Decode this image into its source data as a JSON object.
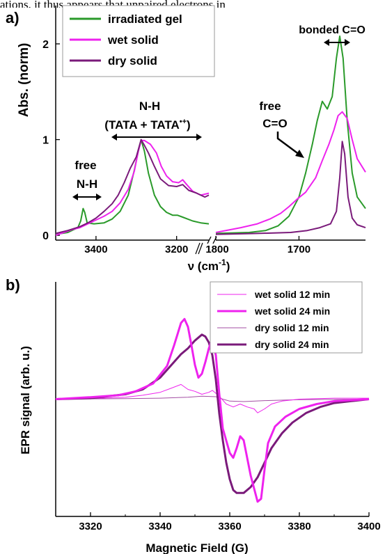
{
  "top_text": "ations, it thus appears that unpaired electrons in",
  "chart_data": [
    {
      "type": "line",
      "panel_label": "a)",
      "ylabel": "Abs. (norm)",
      "yticks": [
        "0",
        "1",
        "2"
      ],
      "ylim": [
        -0.05,
        2.4
      ],
      "x_segments": [
        {
          "range": [
            3500,
            3120
          ],
          "ticks": [
            "3400",
            "3200"
          ],
          "tick_values": [
            3400,
            3200
          ]
        },
        {
          "range": [
            1800,
            1620
          ],
          "ticks": [
            "1800",
            "1700"
          ],
          "tick_values": [
            1800,
            1700
          ]
        }
      ],
      "xlabel_main": "ν (cm",
      "xlabel_sup": "-1",
      "xlabel_end": ")",
      "legend": [
        "irradiated gel",
        "wet solid",
        "dry solid"
      ],
      "series": [
        {
          "name": "irradiated gel",
          "color": "#2a9a2a",
          "seg1": [
            [
              3500,
              0.01
            ],
            [
              3470,
              0.03
            ],
            [
              3445,
              0.08
            ],
            [
              3438,
              0.15
            ],
            [
              3432,
              0.28
            ],
            [
              3428,
              0.24
            ],
            [
              3422,
              0.13
            ],
            [
              3405,
              0.12
            ],
            [
              3380,
              0.13
            ],
            [
              3360,
              0.17
            ],
            [
              3340,
              0.25
            ],
            [
              3320,
              0.42
            ],
            [
              3305,
              0.68
            ],
            [
              3295,
              0.88
            ],
            [
              3288,
              1.0
            ],
            [
              3280,
              0.88
            ],
            [
              3270,
              0.65
            ],
            [
              3255,
              0.42
            ],
            [
              3240,
              0.3
            ],
            [
              3225,
              0.24
            ],
            [
              3210,
              0.21
            ],
            [
              3198,
              0.21
            ],
            [
              3185,
              0.19
            ],
            [
              3160,
              0.15
            ],
            [
              3140,
              0.13
            ],
            [
              3120,
              0.12
            ]
          ],
          "seg2": [
            [
              1800,
              0.02
            ],
            [
              1760,
              0.03
            ],
            [
              1740,
              0.05
            ],
            [
              1725,
              0.1
            ],
            [
              1712,
              0.2
            ],
            [
              1700,
              0.4
            ],
            [
              1692,
              0.65
            ],
            [
              1684,
              0.95
            ],
            [
              1678,
              1.2
            ],
            [
              1672,
              1.4
            ],
            [
              1666,
              1.32
            ],
            [
              1660,
              1.45
            ],
            [
              1655,
              1.85
            ],
            [
              1651,
              2.08
            ],
            [
              1647,
              1.85
            ],
            [
              1642,
              1.2
            ],
            [
              1636,
              0.65
            ],
            [
              1630,
              0.4
            ],
            [
              1620,
              0.28
            ]
          ]
        },
        {
          "name": "wet solid",
          "color": "#ee22ee",
          "seg1": [
            [
              3500,
              0.0
            ],
            [
              3480,
              0.03
            ],
            [
              3460,
              0.06
            ],
            [
              3440,
              0.08
            ],
            [
              3420,
              0.12
            ],
            [
              3400,
              0.16
            ],
            [
              3380,
              0.2
            ],
            [
              3360,
              0.25
            ],
            [
              3340,
              0.34
            ],
            [
              3320,
              0.48
            ],
            [
              3305,
              0.67
            ],
            [
              3295,
              0.88
            ],
            [
              3288,
              0.99
            ],
            [
              3280,
              0.99
            ],
            [
              3265,
              0.95
            ],
            [
              3250,
              0.86
            ],
            [
              3238,
              0.72
            ],
            [
              3225,
              0.62
            ],
            [
              3210,
              0.56
            ],
            [
              3195,
              0.55
            ],
            [
              3185,
              0.58
            ],
            [
              3175,
              0.53
            ],
            [
              3160,
              0.46
            ],
            [
              3140,
              0.42
            ],
            [
              3120,
              0.44
            ]
          ],
          "seg2": [
            [
              1800,
              0.03
            ],
            [
              1770,
              0.08
            ],
            [
              1750,
              0.12
            ],
            [
              1735,
              0.17
            ],
            [
              1722,
              0.23
            ],
            [
              1712,
              0.3
            ],
            [
              1702,
              0.38
            ],
            [
              1692,
              0.45
            ],
            [
              1680,
              0.6
            ],
            [
              1672,
              0.78
            ],
            [
              1664,
              0.95
            ],
            [
              1658,
              1.1
            ],
            [
              1653,
              1.25
            ],
            [
              1648,
              1.29
            ],
            [
              1642,
              1.22
            ],
            [
              1636,
              1.0
            ],
            [
              1630,
              0.8
            ],
            [
              1620,
              0.66
            ]
          ]
        },
        {
          "name": "dry solid",
          "color": "#7a1a7a",
          "seg1": [
            [
              3500,
              0.02
            ],
            [
              3470,
              0.05
            ],
            [
              3440,
              0.09
            ],
            [
              3420,
              0.13
            ],
            [
              3400,
              0.18
            ],
            [
              3380,
              0.25
            ],
            [
              3360,
              0.33
            ],
            [
              3345,
              0.42
            ],
            [
              3330,
              0.55
            ],
            [
              3315,
              0.7
            ],
            [
              3300,
              0.82
            ],
            [
              3288,
              1.0
            ],
            [
              3280,
              0.94
            ],
            [
              3270,
              0.86
            ],
            [
              3255,
              0.72
            ],
            [
              3240,
              0.59
            ],
            [
              3220,
              0.52
            ],
            [
              3200,
              0.51
            ],
            [
              3185,
              0.53
            ],
            [
              3170,
              0.47
            ],
            [
              3150,
              0.44
            ],
            [
              3130,
              0.4
            ],
            [
              3120,
              0.42
            ]
          ],
          "seg2": [
            [
              1800,
              0.01
            ],
            [
              1750,
              0.02
            ],
            [
              1710,
              0.03
            ],
            [
              1690,
              0.05
            ],
            [
              1675,
              0.08
            ],
            [
              1662,
              0.12
            ],
            [
              1655,
              0.25
            ],
            [
              1651,
              0.6
            ],
            [
              1648,
              0.98
            ],
            [
              1645,
              0.85
            ],
            [
              1641,
              0.4
            ],
            [
              1636,
              0.18
            ],
            [
              1630,
              0.11
            ],
            [
              1620,
              0.08
            ]
          ]
        }
      ],
      "annotations": [
        {
          "id": "free-nh",
          "lines": [
            "free",
            "N-H"
          ]
        },
        {
          "id": "nh-band",
          "lines": [
            "N-H",
            "(TATA + TATA",
            "•+",
            ")"
          ]
        },
        {
          "id": "free-co",
          "lines": [
            "free",
            "C=O"
          ]
        },
        {
          "id": "bonded-co",
          "lines": [
            "bonded C=O"
          ]
        }
      ]
    },
    {
      "type": "line",
      "panel_label": "b)",
      "xlabel": "Magnetic Field (G)",
      "ylabel": "EPR signal (arb. u.)",
      "xlim": [
        3310,
        3400
      ],
      "xticks": [
        3320,
        3340,
        3360,
        3380,
        3400
      ],
      "ylim": [
        -1.2,
        1.2
      ],
      "legend": [
        "wet solid 12 min",
        "wet solid 24 min",
        "dry solid 12 min",
        "dry solid 24 min"
      ],
      "series": [
        {
          "name": "wet solid 12 min",
          "color": "#ee22ee",
          "width": 1,
          "points": [
            [
              3310,
              0.0
            ],
            [
              3320,
              0.005
            ],
            [
              3330,
              0.02
            ],
            [
              3335,
              0.04
            ],
            [
              3340,
              0.07
            ],
            [
              3343,
              0.11
            ],
            [
              3346,
              0.15
            ],
            [
              3348,
              0.1
            ],
            [
              3350,
              0.08
            ],
            [
              3352,
              0.05
            ],
            [
              3354,
              0.07
            ],
            [
              3355,
              0.09
            ],
            [
              3357,
              0.03
            ],
            [
              3359,
              -0.05
            ],
            [
              3361,
              -0.08
            ],
            [
              3363,
              -0.05
            ],
            [
              3365,
              -0.08
            ],
            [
              3367,
              -0.1
            ],
            [
              3368,
              -0.14
            ],
            [
              3370,
              -0.1
            ],
            [
              3372,
              -0.05
            ],
            [
              3375,
              -0.02
            ],
            [
              3380,
              0.0
            ],
            [
              3390,
              0.01
            ],
            [
              3400,
              0.01
            ]
          ]
        },
        {
          "name": "wet solid 24 min",
          "color": "#ee22ee",
          "width": 3,
          "points": [
            [
              3310,
              0.0
            ],
            [
              3320,
              0.02
            ],
            [
              3328,
              0.04
            ],
            [
              3333,
              0.08
            ],
            [
              3338,
              0.16
            ],
            [
              3342,
              0.34
            ],
            [
              3344,
              0.55
            ],
            [
              3346,
              0.78
            ],
            [
              3347,
              0.82
            ],
            [
              3348,
              0.74
            ],
            [
              3349,
              0.55
            ],
            [
              3350,
              0.35
            ],
            [
              3351,
              0.22
            ],
            [
              3352,
              0.26
            ],
            [
              3353,
              0.38
            ],
            [
              3354,
              0.52
            ],
            [
              3355,
              0.62
            ],
            [
              3356,
              0.45
            ],
            [
              3357,
              0.05
            ],
            [
              3358,
              -0.3
            ],
            [
              3360,
              -0.55
            ],
            [
              3361,
              -0.6
            ],
            [
              3362,
              -0.5
            ],
            [
              3363,
              -0.38
            ],
            [
              3364,
              -0.42
            ],
            [
              3366,
              -0.78
            ],
            [
              3368,
              -1.05
            ],
            [
              3369,
              -1.02
            ],
            [
              3370,
              -0.72
            ],
            [
              3371,
              -0.45
            ],
            [
              3373,
              -0.28
            ],
            [
              3376,
              -0.18
            ],
            [
              3380,
              -0.1
            ],
            [
              3385,
              -0.05
            ],
            [
              3390,
              -0.02
            ],
            [
              3400,
              0.0
            ]
          ]
        },
        {
          "name": "dry solid 12 min",
          "color": "#a34ea3",
          "width": 1,
          "points": [
            [
              3310,
              0.0
            ],
            [
              3330,
              0.005
            ],
            [
              3340,
              0.01
            ],
            [
              3348,
              0.02
            ],
            [
              3352,
              0.03
            ],
            [
              3356,
              0.025
            ],
            [
              3358,
              0.0
            ],
            [
              3360,
              -0.02
            ],
            [
              3364,
              -0.025
            ],
            [
              3370,
              -0.015
            ],
            [
              3380,
              -0.005
            ],
            [
              3400,
              0.0
            ]
          ]
        },
        {
          "name": "dry solid 24 min",
          "color": "#7a1a7a",
          "width": 3,
          "points": [
            [
              3310,
              0.0
            ],
            [
              3320,
              0.01
            ],
            [
              3330,
              0.05
            ],
            [
              3335,
              0.1
            ],
            [
              3340,
              0.22
            ],
            [
              3343,
              0.34
            ],
            [
              3346,
              0.46
            ],
            [
              3348,
              0.52
            ],
            [
              3350,
              0.6
            ],
            [
              3352,
              0.66
            ],
            [
              3353,
              0.64
            ],
            [
              3354,
              0.58
            ],
            [
              3355,
              0.45
            ],
            [
              3356,
              0.2
            ],
            [
              3357,
              -0.15
            ],
            [
              3358,
              -0.42
            ],
            [
              3359,
              -0.65
            ],
            [
              3360,
              -0.82
            ],
            [
              3361,
              -0.93
            ],
            [
              3362,
              -0.96
            ],
            [
              3364,
              -0.96
            ],
            [
              3366,
              -0.9
            ],
            [
              3368,
              -0.8
            ],
            [
              3370,
              -0.65
            ],
            [
              3372,
              -0.5
            ],
            [
              3375,
              -0.35
            ],
            [
              3378,
              -0.24
            ],
            [
              3382,
              -0.14
            ],
            [
              3386,
              -0.08
            ],
            [
              3390,
              -0.04
            ],
            [
              3395,
              -0.02
            ],
            [
              3400,
              0.0
            ]
          ]
        }
      ]
    }
  ]
}
